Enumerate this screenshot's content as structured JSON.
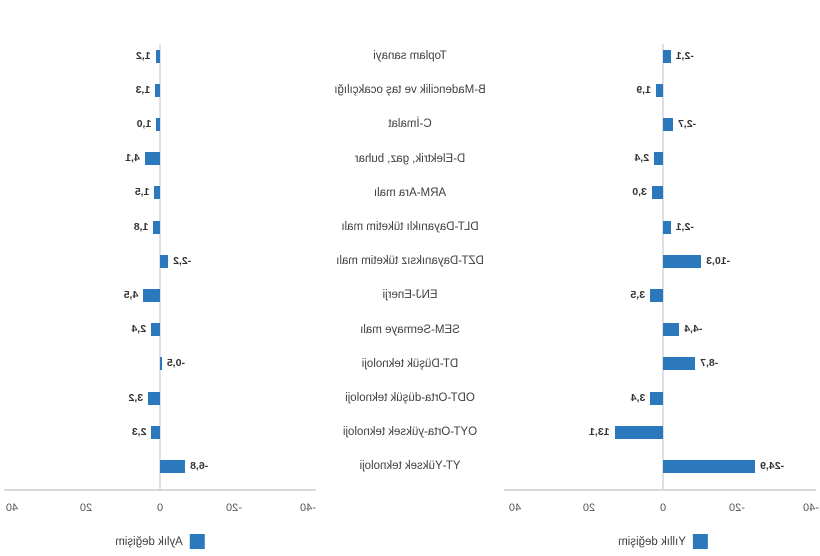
{
  "figure": {
    "mirrored_horizontally": true,
    "background_color": "#ffffff"
  },
  "chart_data": {
    "type": "bar",
    "orientation": "horizontal",
    "title": "",
    "categories": [
      "Toplam sanayi",
      "B-Madencilik ve taş ocakçılığı",
      "C-İmalat",
      "D-Elektrik, gaz, buhar",
      "ARM-Ara malı",
      "DLT-Dayanıklı tüketim malı",
      "DZT-Dayanıksız tüketim malı",
      "ENJ-Enerji",
      "SEM-Sermaye malı",
      "DT-Düşük teknoloji",
      "ODT-Orta-düşük teknoloji",
      "OYT-Orta-yüksek teknoloji",
      "YT-Yüksek teknoloji"
    ],
    "series": [
      {
        "key": "yillik",
        "name": "Yıllık değişim",
        "values": [
          -2.1,
          1.9,
          -2.7,
          2.4,
          3.0,
          -2.1,
          -10.3,
          3.5,
          -4.4,
          -8.7,
          3.4,
          13.1,
          -24.9
        ],
        "value_labels": [
          "-2,1",
          "1,9",
          "-2,7",
          "2,4",
          "3,0",
          "-2,1",
          "-10,3",
          "3,5",
          "-4,4",
          "-8,7",
          "3,4",
          "13,1",
          "-24,9"
        ]
      },
      {
        "key": "aylik",
        "name": "Aylık değişim",
        "values": [
          1.2,
          1.3,
          1.0,
          4.1,
          1.5,
          1.8,
          -2.2,
          4.5,
          2.4,
          -0.5,
          3.2,
          2.3,
          -6.8
        ],
        "value_labels": [
          "1,2",
          "1,3",
          "1,0",
          "4,1",
          "1,5",
          "1,8",
          "-2,2",
          "4,5",
          "2,4",
          "-0,5",
          "3,2",
          "2,3",
          "-6,8"
        ]
      }
    ],
    "xlim": [
      -40,
      40
    ],
    "ticks": {
      "values": [
        -40,
        -20,
        0,
        20,
        40
      ],
      "labels": [
        "-40",
        "-20",
        "0",
        "20",
        "40"
      ]
    },
    "grid": "zero-line-only",
    "legend_position": "bottom-center-of-each-panel",
    "bar_color": "#2B79BC"
  }
}
